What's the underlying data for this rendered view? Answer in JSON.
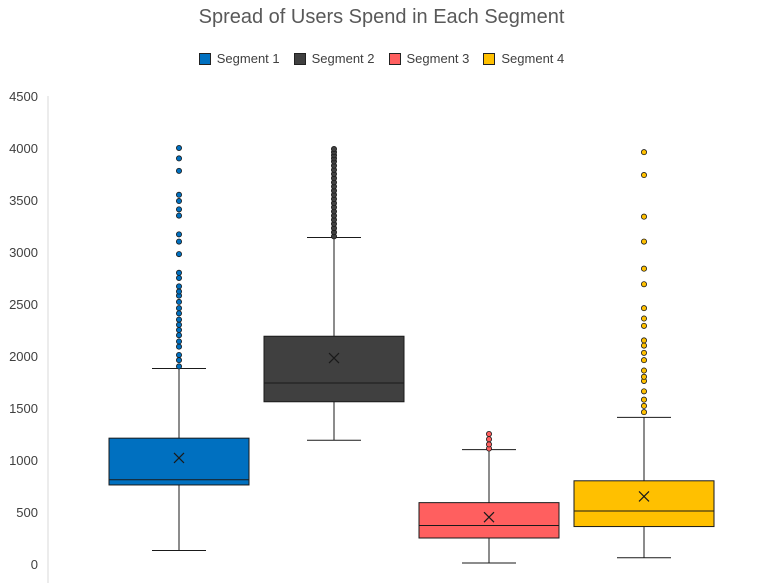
{
  "chart_data": {
    "type": "boxplot",
    "title": "Spread of Users Spend in Each Segment",
    "legend": {
      "placement": "top"
    },
    "y_axis": {
      "min": 0,
      "max": 4500,
      "ticks": [
        0,
        500,
        1000,
        1500,
        2000,
        2500,
        3000,
        3500,
        4000,
        4500
      ]
    },
    "gridlines": false,
    "series": [
      {
        "name": "Segment 1",
        "color": "#0070C0",
        "min": 130,
        "q1": 760,
        "median": 810,
        "q3": 1210,
        "max": 1880,
        "mean": 1020,
        "outliers": [
          1900,
          1960,
          2010,
          2090,
          2140,
          2200,
          2250,
          2300,
          2350,
          2410,
          2460,
          2520,
          2580,
          2620,
          2670,
          2750,
          2800,
          2980,
          3100,
          3170,
          3350,
          3410,
          3490,
          3550,
          3780,
          3900,
          4000
        ]
      },
      {
        "name": "Segment 2",
        "color": "#404040",
        "min": 1190,
        "q1": 1560,
        "median": 1740,
        "q3": 2190,
        "max": 3140,
        "mean": 1980,
        "outliers": [
          3150,
          3190,
          3230,
          3270,
          3310,
          3350,
          3390,
          3430,
          3470,
          3510,
          3550,
          3590,
          3630,
          3670,
          3710,
          3750,
          3790,
          3830,
          3870,
          3900,
          3930,
          3960,
          3990
        ]
      },
      {
        "name": "Segment 3",
        "color": "#FF5F5F",
        "min": 10,
        "q1": 250,
        "median": 370,
        "q3": 590,
        "max": 1100,
        "mean": 450,
        "outliers": [
          1110,
          1150,
          1200,
          1250
        ]
      },
      {
        "name": "Segment 4",
        "color": "#FFC000",
        "min": 60,
        "q1": 360,
        "median": 510,
        "q3": 800,
        "max": 1410,
        "mean": 650,
        "outliers": [
          1460,
          1520,
          1580,
          1660,
          1760,
          1800,
          1860,
          1960,
          2030,
          2100,
          2150,
          2290,
          2360,
          2460,
          2690,
          2840,
          3100,
          3340,
          3740,
          3960
        ]
      }
    ]
  }
}
